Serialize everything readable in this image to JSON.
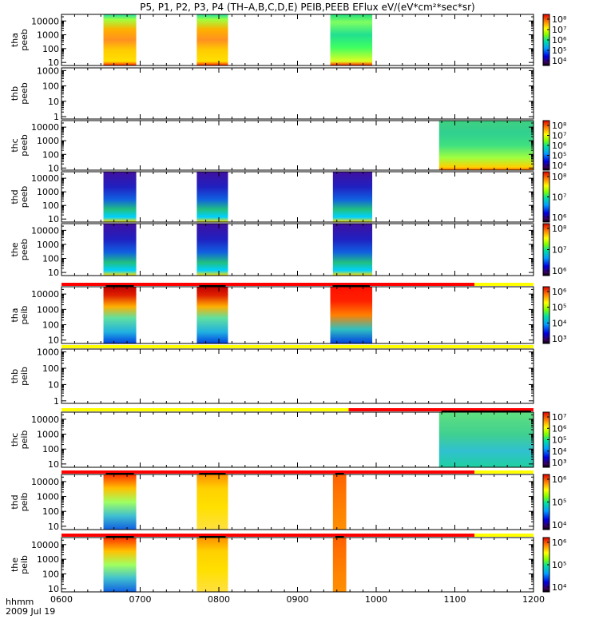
{
  "title": "P5, P1, P2, P3, P4 (TH–A,B,C,D,E) PEIB,PEEB EFlux eV/(eV*cm²*sec*sr)",
  "footer": {
    "time_label": "hhmm",
    "date": "2009 Jul 19"
  },
  "chart_data": {
    "type": "heatmap",
    "x_ticks": [
      "0600",
      "0700",
      "0800",
      "0900",
      "1000",
      "1100",
      "1200"
    ],
    "x_range": [
      "0600",
      "1200"
    ],
    "panels": [
      {
        "probe": "tha",
        "product": "peeb",
        "y_ticks": [
          "10",
          "100",
          "1000",
          "10000"
        ],
        "y_range": [
          6,
          30000
        ],
        "y_scale": "log",
        "colorbar": {
          "labels": [
            "10⁴",
            "10⁵",
            "10⁶",
            "10⁷",
            "10⁸"
          ]
        },
        "status_bar": null,
        "bursts": [
          {
            "start": "0632",
            "end": "0657",
            "style": "hot"
          },
          {
            "start": "0772",
            "end": "0807",
            "style": "hot"
          },
          {
            "start": "0925",
            "end": "0957",
            "style": "cool"
          }
        ]
      },
      {
        "probe": "thb",
        "product": "peeb",
        "y_ticks": [
          "1",
          "10",
          "100",
          "1000"
        ],
        "y_range": [
          0.7,
          1500
        ],
        "y_scale": "log",
        "colorbar": null,
        "status_bar": null,
        "bursts": []
      },
      {
        "probe": "thc",
        "product": "peeb",
        "y_ticks": [
          "10",
          "100",
          "1000",
          "10000"
        ],
        "y_range": [
          7,
          30000
        ],
        "y_scale": "log",
        "colorbar": {
          "labels": [
            "10⁴",
            "10⁵",
            "10⁶",
            "10⁷",
            "10⁸"
          ]
        },
        "status_bar": null,
        "bursts": [
          {
            "start": "1080",
            "end": "1200",
            "style": "wide"
          }
        ]
      },
      {
        "probe": "thd",
        "product": "peeb",
        "y_ticks": [
          "10",
          "100",
          "1000",
          "10000"
        ],
        "y_range": [
          6,
          30000
        ],
        "y_scale": "log",
        "colorbar": {
          "labels": [
            "10⁶",
            "10⁷",
            "10⁸"
          ]
        },
        "status_bar": null,
        "bursts": [
          {
            "start": "0632",
            "end": "0657",
            "style": "deep"
          },
          {
            "start": "0772",
            "end": "0807",
            "style": "deep"
          },
          {
            "start": "0927",
            "end": "0957",
            "style": "deep"
          }
        ]
      },
      {
        "probe": "the",
        "product": "peeb",
        "y_ticks": [
          "10",
          "100",
          "1000",
          "10000"
        ],
        "y_range": [
          6,
          30000
        ],
        "y_scale": "log",
        "colorbar": {
          "labels": [
            "10⁶",
            "10⁷",
            "10⁸"
          ]
        },
        "status_bar": null,
        "bursts": [
          {
            "start": "0632",
            "end": "0657",
            "style": "deep"
          },
          {
            "start": "0772",
            "end": "0807",
            "style": "deep"
          },
          {
            "start": "0927",
            "end": "0957",
            "style": "deep"
          }
        ]
      },
      {
        "probe": "tha",
        "product": "peib",
        "y_ticks": [
          "10",
          "100",
          "1000",
          "10000"
        ],
        "y_range": [
          6,
          30000
        ],
        "y_scale": "log",
        "colorbar": {
          "labels": [
            "10³",
            "10⁴",
            "10⁵",
            "10⁶"
          ]
        },
        "status_bar": [
          {
            "end": "1115",
            "color": "red"
          },
          {
            "end": "1200",
            "color": "yellow"
          }
        ],
        "bursts": [
          {
            "start": "0632",
            "end": "0657",
            "style": "ionhot"
          },
          {
            "start": "0772",
            "end": "0807",
            "style": "ionhot"
          },
          {
            "start": "0925",
            "end": "0957",
            "style": "ionred"
          }
        ]
      },
      {
        "probe": "thb",
        "product": "peib",
        "y_ticks": [
          "1",
          "10",
          "100",
          "1000"
        ],
        "y_range": [
          0.7,
          1500
        ],
        "y_scale": "log",
        "colorbar": null,
        "status_bar": [
          {
            "end": "1200",
            "color": "yellow"
          }
        ],
        "bursts": []
      },
      {
        "probe": "thc",
        "product": "peib",
        "y_ticks": [
          "10",
          "100",
          "1000",
          "10000"
        ],
        "y_range": [
          6,
          30000
        ],
        "y_scale": "log",
        "colorbar": {
          "labels": [
            "10³",
            "10⁴",
            "10⁵",
            "10⁶",
            "10⁷"
          ]
        },
        "status_bar": [
          {
            "end": "0965",
            "color": "yellow"
          },
          {
            "end": "1200",
            "color": "red"
          }
        ],
        "bursts": [
          {
            "start": "1080",
            "end": "1200",
            "style": "ionwide"
          }
        ]
      },
      {
        "probe": "thd",
        "product": "peib",
        "y_ticks": [
          "10",
          "100",
          "1000",
          "10000"
        ],
        "y_range": [
          6,
          30000
        ],
        "y_scale": "log",
        "colorbar": {
          "labels": [
            "10⁴",
            "10⁵",
            "10⁶"
          ]
        },
        "status_bar": [
          {
            "end": "1115",
            "color": "red"
          },
          {
            "end": "1200",
            "color": "yellow"
          }
        ],
        "bursts": [
          {
            "start": "0632",
            "end": "0657",
            "style": "ionwarm"
          },
          {
            "start": "0772",
            "end": "0807",
            "style": "ionyellow"
          },
          {
            "start": "0927",
            "end": "0962",
            "style": "ionorange"
          }
        ]
      },
      {
        "probe": "the",
        "product": "peib",
        "y_ticks": [
          "10",
          "100",
          "1000",
          "10000"
        ],
        "y_range": [
          6,
          30000
        ],
        "y_scale": "log",
        "colorbar": {
          "labels": [
            "10⁴",
            "10⁵",
            "10⁶"
          ]
        },
        "status_bar": [
          {
            "end": "1115",
            "color": "red"
          },
          {
            "end": "1200",
            "color": "yellow"
          }
        ],
        "bursts": [
          {
            "start": "0632",
            "end": "0657",
            "style": "ionwarm"
          },
          {
            "start": "0772",
            "end": "0807",
            "style": "ionyellow"
          },
          {
            "start": "0927",
            "end": "0962",
            "style": "ionorange"
          }
        ]
      }
    ]
  }
}
